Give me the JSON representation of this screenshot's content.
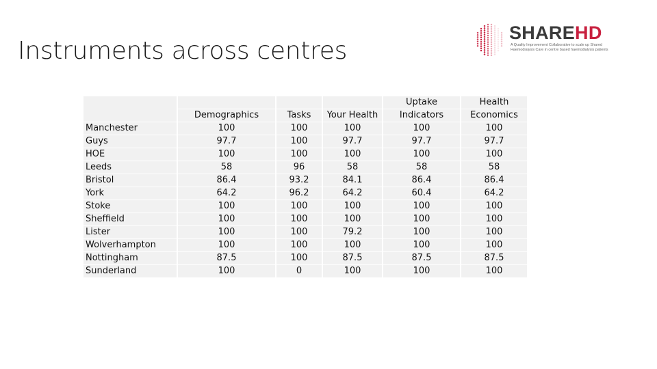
{
  "slide": {
    "title": "Instruments across centres"
  },
  "logo": {
    "brand_part1": "SHARE",
    "brand_part2": "HD",
    "tagline": "A Quality Improvement Collaborative to scale up Shared Haemodialysis Care in centre based haemodialysis patients",
    "colors": {
      "brand_red": "#c8203f",
      "brand_gray": "#3a3a3a"
    }
  },
  "table": {
    "header_top": [
      "",
      "",
      "",
      "",
      "Uptake",
      "Health"
    ],
    "header_bottom": [
      "",
      "Demographics",
      "Tasks",
      "Your Health",
      "Indicators",
      "Economics"
    ],
    "rows": [
      {
        "centre": "Manchester",
        "values": [
          "100",
          "100",
          "100",
          "100",
          "100"
        ]
      },
      {
        "centre": "Guys",
        "values": [
          "97.7",
          "100",
          "97.7",
          "97.7",
          "97.7"
        ]
      },
      {
        "centre": "HOE",
        "values": [
          "100",
          "100",
          "100",
          "100",
          "100"
        ]
      },
      {
        "centre": "Leeds",
        "values": [
          "58",
          "96",
          "58",
          "58",
          "58"
        ]
      },
      {
        "centre": "Bristol",
        "values": [
          "86.4",
          "93.2",
          "84.1",
          "86.4",
          "86.4"
        ]
      },
      {
        "centre": "York",
        "values": [
          "64.2",
          "96.2",
          "64.2",
          "60.4",
          "64.2"
        ]
      },
      {
        "centre": "Stoke",
        "values": [
          "100",
          "100",
          "100",
          "100",
          "100"
        ]
      },
      {
        "centre": "Sheffield",
        "values": [
          "100",
          "100",
          "100",
          "100",
          "100"
        ]
      },
      {
        "centre": "Lister",
        "values": [
          "100",
          "100",
          "79.2",
          "100",
          "100"
        ]
      },
      {
        "centre": "Wolverhampton",
        "values": [
          "100",
          "100",
          "100",
          "100",
          "100"
        ]
      },
      {
        "centre": "Nottingham",
        "values": [
          "87.5",
          "100",
          "87.5",
          "87.5",
          "87.5"
        ]
      },
      {
        "centre": "Sunderland",
        "values": [
          "100",
          "0",
          "100",
          "100",
          "100"
        ]
      }
    ],
    "colors": {
      "cell_bg": "#f1f1f1"
    }
  }
}
